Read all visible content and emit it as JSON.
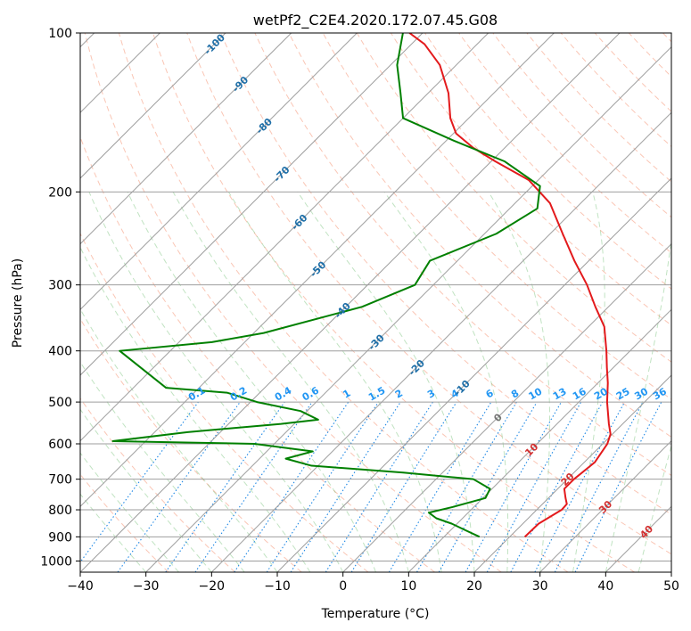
{
  "chart_data": {
    "type": "line",
    "title": "wetPf2_C2E4.2020.172.07.45.G08",
    "xlabel": "Temperature (°C)",
    "ylabel": "Pressure (hPa)",
    "xlim": [
      -40,
      50
    ],
    "ylim": [
      1050,
      100
    ],
    "y_scale": "log",
    "skew": "skew-T log-P",
    "grid": true,
    "x_ticks": [
      "−40",
      "−30",
      "−20",
      "−10",
      "0",
      "10",
      "20",
      "30",
      "40",
      "50"
    ],
    "x_tick_values": [
      -40,
      -30,
      -20,
      -10,
      0,
      10,
      20,
      30,
      40,
      50
    ],
    "y_ticks": [
      "100",
      "200",
      "300",
      "400",
      "500",
      "600",
      "700",
      "800",
      "900",
      "1000"
    ],
    "y_tick_values": [
      100,
      200,
      300,
      400,
      500,
      600,
      700,
      800,
      900,
      1000
    ],
    "isotherm_labels": [
      {
        "value": -100,
        "text": "-100",
        "p": 105
      },
      {
        "value": -90,
        "text": "-90",
        "p": 125
      },
      {
        "value": -80,
        "text": "-80",
        "p": 150
      },
      {
        "value": -70,
        "text": "-70",
        "p": 185
      },
      {
        "value": -60,
        "text": "-60",
        "p": 228
      },
      {
        "value": -50,
        "text": "-50",
        "p": 280
      },
      {
        "value": -40,
        "text": "-40",
        "p": 335
      },
      {
        "value": -30,
        "text": "-30",
        "p": 385
      },
      {
        "value": -20,
        "text": "-20",
        "p": 430
      },
      {
        "value": -10,
        "text": "-10",
        "p": 470
      },
      {
        "value": 0,
        "text": "0",
        "p": 535
      },
      {
        "value": 10,
        "text": "10",
        "p": 615
      },
      {
        "value": 20,
        "text": "20",
        "p": 700
      },
      {
        "value": 30,
        "text": "30",
        "p": 790
      },
      {
        "value": 40,
        "text": "40",
        "p": 880
      }
    ],
    "mixing_ratio_labels": [
      "0.1",
      "0.2",
      "0.4",
      "0.6",
      "1",
      "1.5",
      "2",
      "3",
      "4",
      "6",
      "8",
      "10",
      "13",
      "16",
      "20",
      "25",
      "30",
      "36"
    ],
    "mixing_ratio_values": [
      0.1,
      0.2,
      0.4,
      0.6,
      1,
      1.5,
      2,
      3,
      4,
      6,
      8,
      10,
      13,
      16,
      20,
      25,
      30,
      36
    ],
    "mixing_ratio_label_pressure": 500,
    "series": [
      {
        "key": "temperature",
        "color": "#e31a1c",
        "points": [
          [
            900,
            22.3
          ],
          [
            850,
            22.4
          ],
          [
            800,
            23.8
          ],
          [
            780,
            23.7
          ],
          [
            760,
            22.6
          ],
          [
            730,
            21.0
          ],
          [
            700,
            21.0
          ],
          [
            650,
            21.6
          ],
          [
            600,
            20.7
          ],
          [
            575,
            19.7
          ],
          [
            550,
            17.9
          ],
          [
            500,
            14.3
          ],
          [
            460,
            11.5
          ],
          [
            430,
            9.0
          ],
          [
            400,
            6.4
          ],
          [
            360,
            2.4
          ],
          [
            330,
            -2.0
          ],
          [
            300,
            -6.6
          ],
          [
            270,
            -12.2
          ],
          [
            240,
            -18.1
          ],
          [
            210,
            -24.7
          ],
          [
            190,
            -31.4
          ],
          [
            175,
            -39.4
          ],
          [
            165,
            -44.8
          ],
          [
            155,
            -49.6
          ],
          [
            145,
            -52.8
          ],
          [
            130,
            -56.9
          ],
          [
            115,
            -62.5
          ],
          [
            105,
            -68.0
          ],
          [
            100,
            -72.0
          ]
        ]
      },
      {
        "key": "dewpoint",
        "color": "#008000",
        "points": [
          [
            900,
            15.4
          ],
          [
            870,
            11.7
          ],
          [
            850,
            9.2
          ],
          [
            830,
            6.0
          ],
          [
            810,
            4.0
          ],
          [
            790,
            6.8
          ],
          [
            760,
            10.4
          ],
          [
            730,
            9.7
          ],
          [
            700,
            5.7
          ],
          [
            680,
            -6.0
          ],
          [
            660,
            -21.0
          ],
          [
            640,
            -26.0
          ],
          [
            620,
            -23.0
          ],
          [
            600,
            -33.0
          ],
          [
            593,
            -55.0
          ],
          [
            570,
            -45.0
          ],
          [
            550,
            -32.0
          ],
          [
            540,
            -27.0
          ],
          [
            520,
            -31.0
          ],
          [
            500,
            -39.0
          ],
          [
            480,
            -45.0
          ],
          [
            470,
            -55.0
          ],
          [
            400,
            -67.7
          ],
          [
            385,
            -55.0
          ],
          [
            370,
            -48.5
          ],
          [
            330,
            -37.5
          ],
          [
            300,
            -32.8
          ],
          [
            270,
            -34.2
          ],
          [
            240,
            -28.2
          ],
          [
            215,
            -25.8
          ],
          [
            195,
            -28.8
          ],
          [
            175,
            -38.0
          ],
          [
            160,
            -48.8
          ],
          [
            145,
            -60.0
          ],
          [
            130,
            -64.2
          ],
          [
            115,
            -69.0
          ],
          [
            100,
            -73.0
          ]
        ]
      }
    ]
  }
}
